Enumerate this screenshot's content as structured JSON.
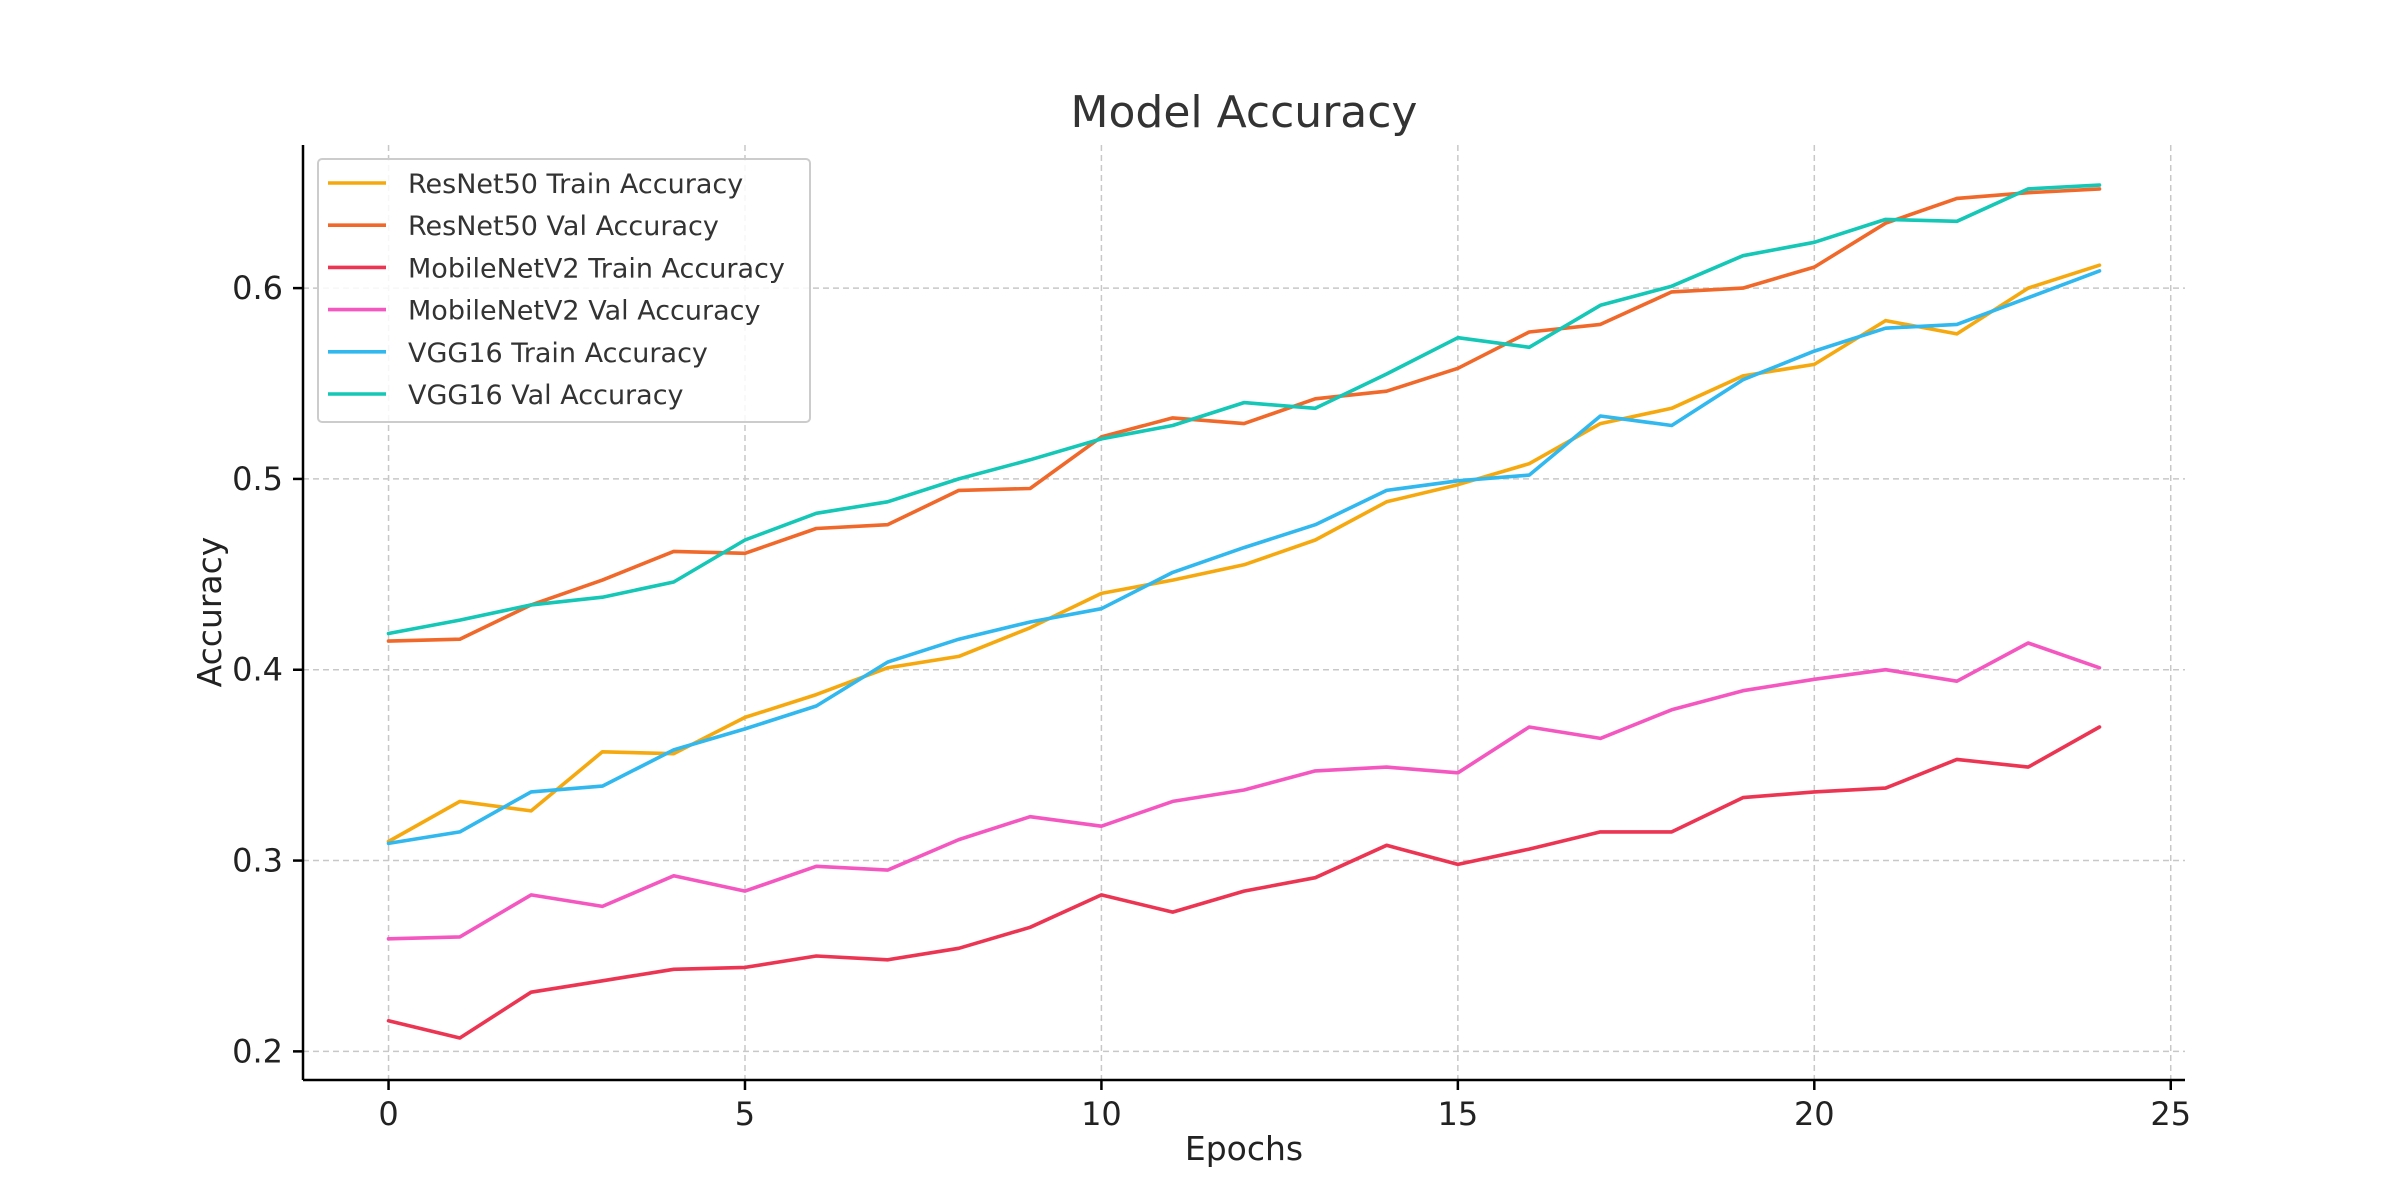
{
  "chart_data": {
    "type": "line",
    "title": "Model Accuracy",
    "xlabel": "Epochs",
    "ylabel": "Accuracy",
    "xlim": [
      -1.2,
      25.2
    ],
    "ylim": [
      0.185,
      0.675
    ],
    "xticks": [
      0,
      5,
      10,
      15,
      20,
      25
    ],
    "yticks": [
      0.2,
      0.3,
      0.4,
      0.5,
      0.6
    ],
    "xtick_labels": [
      "0",
      "5",
      "10",
      "15",
      "20",
      "25"
    ],
    "ytick_labels": [
      "0.2",
      "0.3",
      "0.4",
      "0.5",
      "0.6"
    ],
    "grid": true,
    "legend_position": "upper-left",
    "x": [
      0,
      1,
      2,
      3,
      4,
      5,
      6,
      7,
      8,
      9,
      10,
      11,
      12,
      13,
      14,
      15,
      16,
      17,
      18,
      19,
      20,
      21,
      22,
      23,
      24
    ],
    "series": [
      {
        "name": "ResNet50 Train Accuracy",
        "color": "#f5a90f",
        "values": [
          0.31,
          0.331,
          0.326,
          0.357,
          0.356,
          0.375,
          0.387,
          0.401,
          0.407,
          0.422,
          0.44,
          0.447,
          0.455,
          0.468,
          0.488,
          0.497,
          0.508,
          0.529,
          0.537,
          0.554,
          0.56,
          0.583,
          0.576,
          0.6,
          0.612
        ]
      },
      {
        "name": "ResNet50 Val Accuracy",
        "color": "#f0682a",
        "values": [
          0.415,
          0.416,
          0.434,
          0.447,
          0.462,
          0.461,
          0.474,
          0.476,
          0.494,
          0.495,
          0.522,
          0.532,
          0.529,
          0.542,
          0.546,
          0.558,
          0.577,
          0.581,
          0.598,
          0.6,
          0.611,
          0.634,
          0.647,
          0.65,
          0.652
        ]
      },
      {
        "name": "MobileNetV2 Train Accuracy",
        "color": "#ec3552",
        "values": [
          0.216,
          0.207,
          0.231,
          0.237,
          0.243,
          0.244,
          0.25,
          0.248,
          0.254,
          0.265,
          0.282,
          0.273,
          0.284,
          0.291,
          0.308,
          0.298,
          0.306,
          0.315,
          0.315,
          0.333,
          0.336,
          0.338,
          0.353,
          0.349,
          0.37
        ]
      },
      {
        "name": "MobileNetV2 Val Accuracy",
        "color": "#f458c0",
        "values": [
          0.259,
          0.26,
          0.282,
          0.276,
          0.292,
          0.284,
          0.297,
          0.295,
          0.311,
          0.323,
          0.318,
          0.331,
          0.337,
          0.347,
          0.349,
          0.346,
          0.37,
          0.364,
          0.379,
          0.389,
          0.395,
          0.4,
          0.394,
          0.414,
          0.401
        ]
      },
      {
        "name": "VGG16 Train Accuracy",
        "color": "#30b8ef",
        "values": [
          0.309,
          0.315,
          0.336,
          0.339,
          0.358,
          0.369,
          0.381,
          0.404,
          0.416,
          0.425,
          0.432,
          0.451,
          0.464,
          0.476,
          0.494,
          0.499,
          0.502,
          0.533,
          0.528,
          0.552,
          0.567,
          0.579,
          0.581,
          0.595,
          0.609
        ]
      },
      {
        "name": "VGG16 Val Accuracy",
        "color": "#14c7b6",
        "values": [
          0.419,
          0.426,
          0.434,
          0.438,
          0.446,
          0.468,
          0.482,
          0.488,
          0.5,
          0.51,
          0.521,
          0.528,
          0.54,
          0.537,
          0.555,
          0.574,
          0.569,
          0.591,
          0.601,
          0.617,
          0.624,
          0.636,
          0.635,
          0.652,
          0.654
        ]
      }
    ]
  }
}
